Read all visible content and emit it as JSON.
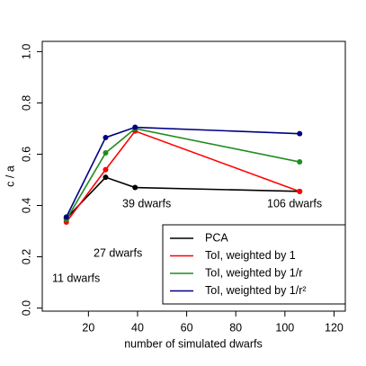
{
  "chart_data": {
    "type": "line",
    "x_label": "number of simulated dwarfs",
    "y_label": "c / a",
    "xlim": [
      1.2,
      124.6
    ],
    "ylim": [
      -0.012,
      1.04
    ],
    "xticks": [
      20,
      40,
      60,
      80,
      100,
      120
    ],
    "yticks": [
      {
        "value": 0,
        "label": "0.0"
      },
      {
        "value": 0.2,
        "label": "0.2"
      },
      {
        "value": 0.4,
        "label": "0.4"
      },
      {
        "value": 0.6,
        "label": "0.6"
      },
      {
        "value": 0.8,
        "label": "0.8"
      },
      {
        "value": 1,
        "label": "1.0"
      }
    ],
    "x": [
      11,
      27,
      39,
      106
    ],
    "series": [
      {
        "name": "PCA",
        "color": "#000000",
        "values": [
          0.35,
          0.51,
          0.47,
          0.455
        ]
      },
      {
        "name": "ToI, weighted by 1",
        "color": "#ff0000",
        "values": [
          0.335,
          0.54,
          0.69,
          0.455
        ]
      },
      {
        "name": "ToI, weighted by 1/r",
        "color": "#228b22",
        "values": [
          0.345,
          0.605,
          0.7,
          0.57
        ]
      },
      {
        "name": "ToI, weighted by 1/r²",
        "color": "#000080",
        "values": [
          0.355,
          0.665,
          0.705,
          0.68
        ]
      }
    ],
    "annotations": [
      "11 dwarfs",
      "27 dwarfs",
      "39 dwarfs",
      "106 dwarfs"
    ],
    "legend": "bottom-right"
  }
}
